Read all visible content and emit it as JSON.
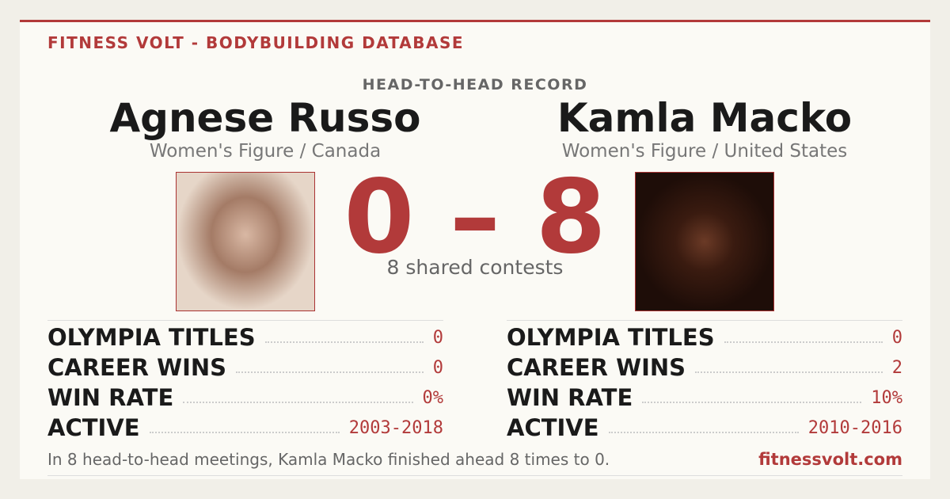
{
  "header": {
    "brand": "FITNESS VOLT - BODYBUILDING DATABASE",
    "section": "HEAD-TO-HEAD RECORD"
  },
  "athletes": [
    {
      "name": "Agnese Russo",
      "subtitle": "Women's Figure / Canada",
      "stats": [
        {
          "label": "OLYMPIA TITLES",
          "value": "0"
        },
        {
          "label": "CAREER WINS",
          "value": "0"
        },
        {
          "label": "WIN RATE",
          "value": "0%"
        },
        {
          "label": "ACTIVE",
          "value": "2003-2018"
        }
      ]
    },
    {
      "name": "Kamla Macko",
      "subtitle": "Women's Figure / United States",
      "stats": [
        {
          "label": "OLYMPIA TITLES",
          "value": "0"
        },
        {
          "label": "CAREER WINS",
          "value": "2"
        },
        {
          "label": "WIN RATE",
          "value": "10%"
        },
        {
          "label": "ACTIVE",
          "value": "2010-2016"
        }
      ]
    }
  ],
  "score": {
    "left": 0,
    "separator": "–",
    "right": 8,
    "caption": "8 shared contests"
  },
  "footer": {
    "summary": "In 8 head-to-head meetings, Kamla Macko finished ahead 8 times to 0.",
    "site": "fitnessvolt.com"
  }
}
